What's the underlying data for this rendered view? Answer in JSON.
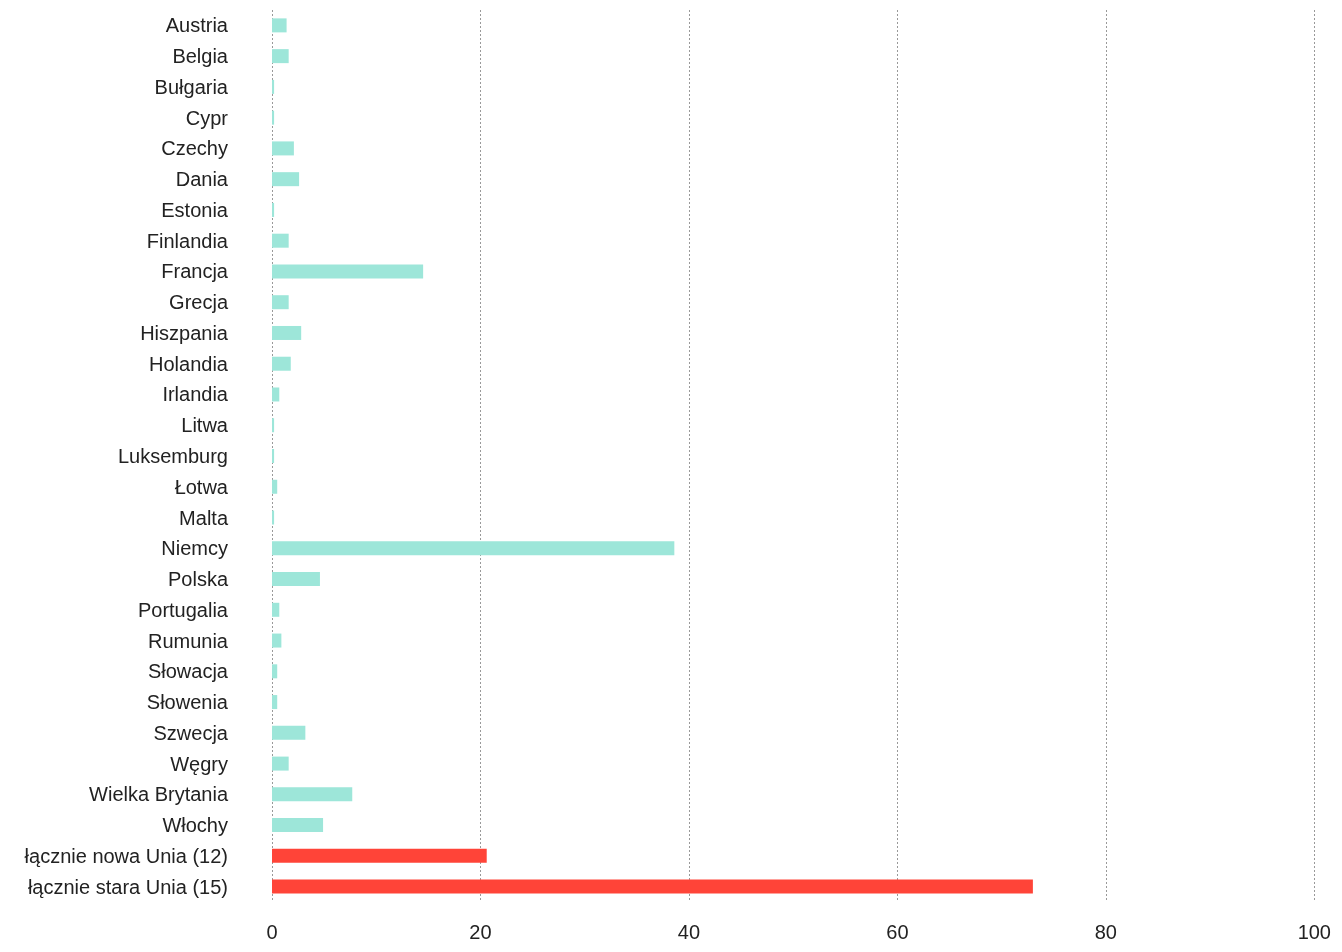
{
  "chart_data": {
    "type": "bar",
    "orientation": "horizontal",
    "categories": [
      "Austria",
      "Belgia",
      "Bułgaria",
      "Cypr",
      "Czechy",
      "Dania",
      "Estonia",
      "Finlandia",
      "Francja",
      "Grecja",
      "Hiszpania",
      "Holandia",
      "Irlandia",
      "Litwa",
      "Luksemburg",
      "Łotwa",
      "Malta",
      "Niemcy",
      "Polska",
      "Portugalia",
      "Rumunia",
      "Słowacja",
      "Słowenia",
      "Szwecja",
      "Węgry",
      "Wielka Brytania",
      "Włochy",
      "łącznie nowa Unia (12)",
      "łącznie stara Unia (15)"
    ],
    "values": [
      1.4,
      1.6,
      0.2,
      0.2,
      2.1,
      2.6,
      0.2,
      1.6,
      14.5,
      1.6,
      2.8,
      1.8,
      0.7,
      0.2,
      0.2,
      0.5,
      0.2,
      38.6,
      4.6,
      0.7,
      0.9,
      0.5,
      0.5,
      3.2,
      1.6,
      7.7,
      4.9,
      20.6,
      73.0
    ],
    "colors": [
      "#9de6d9",
      "#9de6d9",
      "#9de6d9",
      "#9de6d9",
      "#9de6d9",
      "#9de6d9",
      "#9de6d9",
      "#9de6d9",
      "#9de6d9",
      "#9de6d9",
      "#9de6d9",
      "#9de6d9",
      "#9de6d9",
      "#9de6d9",
      "#9de6d9",
      "#9de6d9",
      "#9de6d9",
      "#9de6d9",
      "#9de6d9",
      "#9de6d9",
      "#9de6d9",
      "#9de6d9",
      "#9de6d9",
      "#9de6d9",
      "#9de6d9",
      "#9de6d9",
      "#9de6d9",
      "#ff4438",
      "#ff4438"
    ],
    "xlim": [
      0,
      100
    ],
    "xticks": [
      0,
      20,
      40,
      60,
      80,
      100
    ],
    "grid": "x"
  }
}
